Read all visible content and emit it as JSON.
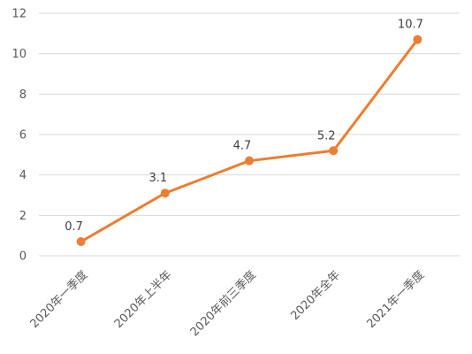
{
  "chart_data": {
    "type": "line",
    "categories": [
      "2020年一季度",
      "2020年上半年",
      "2020年前三季度",
      "2020年全年",
      "2021年一季度"
    ],
    "series": [
      {
        "values": [
          0.7,
          3.1,
          4.7,
          5.2,
          10.7
        ],
        "color": "#ED7D31"
      }
    ],
    "data_labels": [
      "0.7",
      "3.1",
      "4.7",
      "5.2",
      "10.7"
    ],
    "ylim": [
      0,
      12
    ],
    "yticks": [
      0,
      2,
      4,
      6,
      8,
      10,
      12
    ],
    "grid": true,
    "legend": "none"
  }
}
